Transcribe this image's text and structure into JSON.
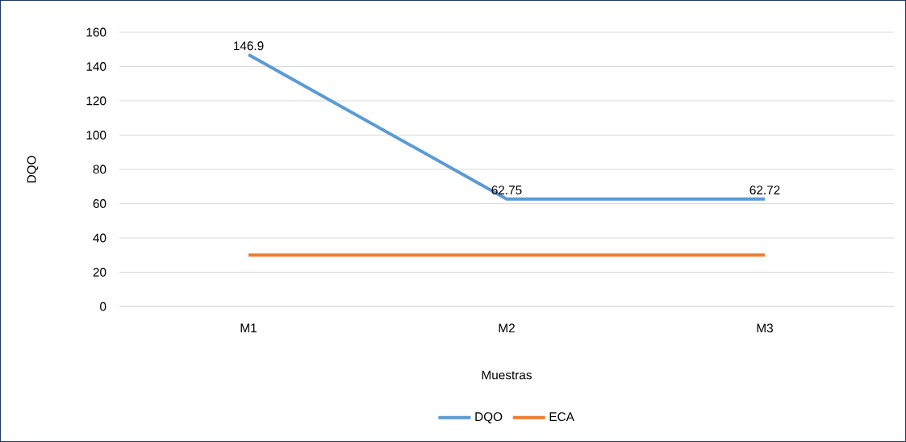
{
  "chart_data": {
    "type": "line",
    "xlabel": "Muestras",
    "ylabel": "DQO",
    "categories": [
      "M1",
      "M2",
      "M3"
    ],
    "series": [
      {
        "name": "DQO",
        "color": "#5b9bd5",
        "values": [
          146.9,
          62.75,
          62.72
        ],
        "value_labels": [
          "146.9",
          "62.75",
          "62.72"
        ]
      },
      {
        "name": "ECA",
        "color": "#ed7d31",
        "values": [
          30,
          30,
          30
        ]
      }
    ],
    "ylim": [
      0,
      160
    ],
    "yticks": [
      0,
      20,
      40,
      60,
      80,
      100,
      120,
      140,
      160
    ],
    "grid": "y",
    "legend": "bottom",
    "marker": "none",
    "line_style": "solid"
  }
}
